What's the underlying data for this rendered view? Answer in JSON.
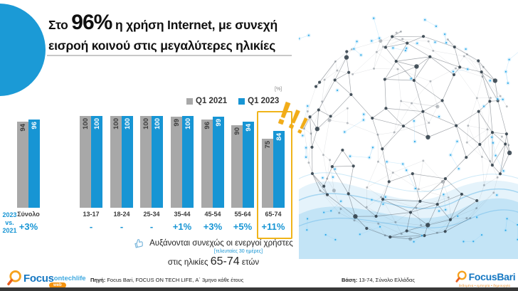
{
  "title": {
    "prefix": "Στο ",
    "highlight": "96%",
    "line1_rest": " η χρήση Internet, με συνεχή",
    "line2": "εισροή κοινού στις μεγαλύτερες ηλικίες"
  },
  "chart_data": {
    "type": "bar",
    "unit_label": "[%]",
    "categories": [
      "Σύνολο",
      "13-17",
      "18-24",
      "25-34",
      "35-44",
      "45-54",
      "55-64",
      "65-74"
    ],
    "series": [
      {
        "name": "Q1 2021",
        "color": "#a8a8a8",
        "values": [
          94,
          100,
          100,
          100,
          99,
          96,
          90,
          75
        ]
      },
      {
        "name": "Q1 2023",
        "color": "#1795d4",
        "values": [
          96,
          100,
          100,
          100,
          100,
          99,
          94,
          84
        ]
      }
    ],
    "deltas": [
      "+3%",
      "-",
      "-",
      "-",
      "+1%",
      "+3%",
      "+5%",
      "+11%"
    ],
    "delta_header": "2023 vs. 2021",
    "delta_header_lines": [
      "2023",
      "vs.",
      "2021"
    ],
    "ylim": [
      0,
      100
    ],
    "grid": false,
    "legend_position": "top",
    "highlight_category": "65-74"
  },
  "decorations": {
    "exclamation_marks": [
      "!",
      "!",
      "!"
    ]
  },
  "note": {
    "line1": "Αυξάνονται συνεχώς οι ενεργοί χρήστες",
    "line2": "[τελευταίες 30 ημέρες]",
    "line3_prefix": "στις ηλικίες ",
    "line3_highlight": "65-74",
    "line3_suffix": " ετών"
  },
  "footer": {
    "source_label": "Πηγή:",
    "source_text": " Focus Bari, FOCUS ON TECH LIFE, Α΄ 3μηνο κάθε έτους",
    "base_label": "Βάση:",
    "base_text": " 13-74, Σύνολο Ελλάδας",
    "logo_left": {
      "focus": "Focus",
      "suffix": "ontechlife",
      "badge": "web"
    },
    "logo_right": {
      "name": "FocusBari",
      "tagline": "δεδομένα • εμπειρία • δημιουργία"
    }
  },
  "colors": {
    "bar_blue": "#1795d4",
    "bar_gray": "#a8a8a8",
    "highlight_yellow": "#f0b41a",
    "logo_orange": "#f5a01b",
    "logo_blue": "#1577c2",
    "circle_blue": "#1b9ad6"
  }
}
